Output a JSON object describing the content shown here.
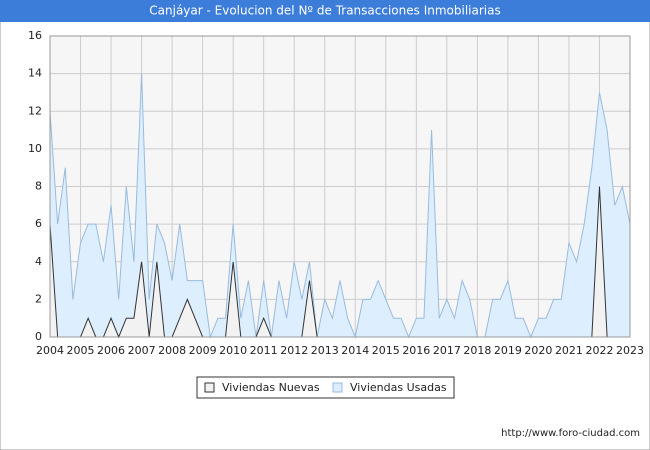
{
  "chart_data": {
    "type": "area",
    "title": "Canjáyar - Evolucion del Nº de Transacciones Inmobiliarias",
    "footer": "http://www.foro-ciudad.com",
    "x": [
      2004,
      2004.25,
      2004.5,
      2004.75,
      2005,
      2005.25,
      2005.5,
      2005.75,
      2006,
      2006.25,
      2006.5,
      2006.75,
      2007,
      2007.25,
      2007.5,
      2007.75,
      2008,
      2008.25,
      2008.5,
      2008.75,
      2009,
      2009.25,
      2009.5,
      2009.75,
      2010,
      2010.25,
      2010.5,
      2010.75,
      2011,
      2011.25,
      2011.5,
      2011.75,
      2012,
      2012.25,
      2012.5,
      2012.75,
      2013,
      2013.25,
      2013.5,
      2013.75,
      2014,
      2014.25,
      2014.5,
      2014.75,
      2015,
      2015.25,
      2015.5,
      2015.75,
      2016,
      2016.25,
      2016.5,
      2016.75,
      2017,
      2017.25,
      2017.5,
      2017.75,
      2018,
      2018.25,
      2018.5,
      2018.75,
      2019,
      2019.25,
      2019.5,
      2019.75,
      2020,
      2020.25,
      2020.5,
      2020.75,
      2021,
      2021.25,
      2021.5,
      2021.75,
      2022,
      2022.25,
      2022.5,
      2022.75,
      2023
    ],
    "series": [
      {
        "name": "Viviendas Usadas",
        "color": "#ddeeff",
        "stroke": "#99bbdd",
        "values": [
          12,
          6,
          9,
          2,
          5,
          6,
          6,
          4,
          7,
          2,
          8,
          4,
          14,
          2,
          6,
          5,
          3,
          6,
          3,
          3,
          3,
          0,
          1,
          1,
          6,
          1,
          3,
          0,
          3,
          0,
          3,
          1,
          4,
          2,
          4,
          0,
          2,
          1,
          3,
          1,
          0,
          2,
          2,
          3,
          2,
          1,
          1,
          0,
          1,
          1,
          11,
          1,
          2,
          1,
          3,
          2,
          0,
          0,
          2,
          2,
          3,
          1,
          1,
          0,
          1,
          1,
          2,
          2,
          5,
          4,
          6,
          9,
          13,
          11,
          7,
          8,
          6
        ]
      },
      {
        "name": "Viviendas Nuevas",
        "color": "#f2f2f2",
        "stroke": "#333333",
        "values": [
          6,
          0,
          0,
          0,
          0,
          1,
          0,
          0,
          1,
          0,
          1,
          1,
          4,
          0,
          4,
          0,
          0,
          1,
          2,
          1,
          0,
          0,
          0,
          0,
          4,
          0,
          0,
          0,
          1,
          0,
          0,
          0,
          0,
          0,
          3,
          0,
          0,
          0,
          0,
          0,
          0,
          0,
          0,
          0,
          0,
          0,
          0,
          0,
          0,
          0,
          0,
          0,
          0,
          0,
          0,
          0,
          0,
          0,
          0,
          0,
          0,
          0,
          0,
          0,
          0,
          0,
          0,
          0,
          0,
          0,
          0,
          0,
          8,
          0,
          0,
          0,
          0
        ]
      }
    ],
    "xlim": [
      2004,
      2023
    ],
    "xticks": [
      2004,
      2005,
      2006,
      2007,
      2008,
      2009,
      2010,
      2011,
      2012,
      2013,
      2014,
      2015,
      2016,
      2017,
      2018,
      2019,
      2020,
      2021,
      2022,
      2023
    ],
    "ylim": [
      0,
      16
    ],
    "yticks": [
      0,
      2,
      4,
      6,
      8,
      10,
      12,
      14,
      16
    ],
    "grid": true
  }
}
